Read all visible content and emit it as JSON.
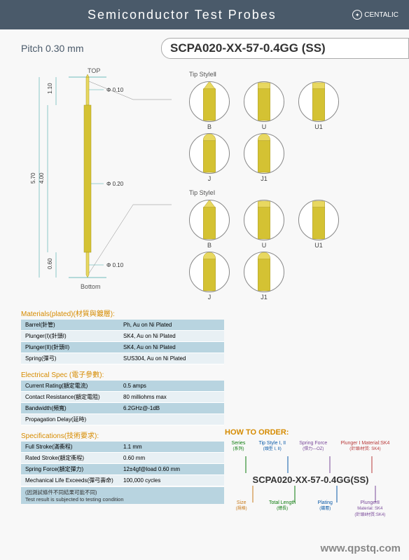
{
  "header": {
    "title": "Semiconductor Test Probes",
    "brand": "CENTALIC"
  },
  "pitch": "Pitch 0.30 mm",
  "model": "SCPA020-XX-57-0.4GG (SS)",
  "probe": {
    "top_label": "TOP",
    "bottom_label": "Bottom",
    "dims": {
      "d1": "Φ 0.10",
      "d2": "Φ 0.20",
      "d3": "Φ 0.10",
      "h_top": "1.10",
      "h_mid": "4.00",
      "h_total": "5.70",
      "h_bot": "0.60"
    },
    "body_color": "#d4c233",
    "tip_color": "#e8d860"
  },
  "tips": {
    "style2": {
      "label": "Tip StyleⅡ",
      "row1": [
        {
          "k": "B",
          "shape": "point"
        },
        {
          "k": "U",
          "shape": "flat"
        },
        {
          "k": "U1",
          "shape": "flat"
        }
      ],
      "row2": [
        {
          "k": "J",
          "shape": "round"
        },
        {
          "k": "J1",
          "shape": "round"
        }
      ]
    },
    "style1": {
      "label": "Tip StyleⅠ",
      "row1": [
        {
          "k": "B",
          "shape": "point"
        },
        {
          "k": "U",
          "shape": "flat"
        },
        {
          "k": "U1",
          "shape": "flat"
        }
      ],
      "row2": [
        {
          "k": "J",
          "shape": "round"
        },
        {
          "k": "J1",
          "shape": "round"
        }
      ]
    }
  },
  "tables": {
    "materials": {
      "title": "Materials(plated)(材質與鍍層):",
      "rows": [
        [
          "Barrel(針管)",
          "Ph, Au on Ni Plated"
        ],
        [
          "Plunger(I)(針頭I)",
          "SK4, Au on Ni Plated"
        ],
        [
          "Plunger(II)(針頭II)",
          "SK4, Au on Ni Plated"
        ],
        [
          "Spring(彈弓)",
          "SUS304, Au on Ni Plated"
        ]
      ]
    },
    "electrical": {
      "title": "Electrical Spec (電子參數):",
      "rows": [
        [
          "Current Rating(額定電流)",
          "0.5 amps"
        ],
        [
          "Contact Resistance(額定電阻)",
          "80 milliohms max"
        ],
        [
          "Bandwidth(頻寬)",
          "6.2GHz@-1dB"
        ],
        [
          "Propagation Delay(延時)",
          ""
        ]
      ]
    },
    "specs": {
      "title": "Specifications(技術要求):",
      "rows": [
        [
          "Full Stroke(滿衝程)",
          "1.1 mm"
        ],
        [
          "Rated Stroke(額定衝程)",
          "0.60 mm"
        ],
        [
          "Spring Force(額定彈力)",
          "12±4gf@load 0.60 mm"
        ],
        [
          "Mechanical Life Exceeds(彈弓壽命)",
          "100,000 cycles"
        ]
      ]
    }
  },
  "footnote": "(因測試條件不同結果可能不同)\nTest result is subjected to testing condition",
  "order": {
    "title": "HOW TO ORDER:",
    "code": "SCPA020-XX-57-0.4GG(SS)",
    "top": [
      {
        "t": "Series",
        "s": "(系列)",
        "c": "ol-green"
      },
      {
        "t": "Tip Style I, II",
        "s": "(頭型 I, II)",
        "c": "ol-blue"
      },
      {
        "t": "Spring Force",
        "s": "(彈力—OZ)",
        "c": "ol-purple"
      },
      {
        "t": "Plunger I Material:SK4",
        "s": "(針頭I材質: SK4)",
        "c": "ol-red"
      }
    ],
    "bot": [
      {
        "t": "Size",
        "s": "(規格)",
        "c": "ol-orange"
      },
      {
        "t": "Total Length",
        "s": "(總長)",
        "c": "ol-green"
      },
      {
        "t": "Plating",
        "s": "(鍍層)",
        "c": "ol-blue"
      },
      {
        "t": "PlungerⅡ",
        "s": "Material: SK4\n(針頭Ⅱ材質:SK4)",
        "c": "ol-purple"
      }
    ]
  },
  "watermark": "www.qpstq.com"
}
